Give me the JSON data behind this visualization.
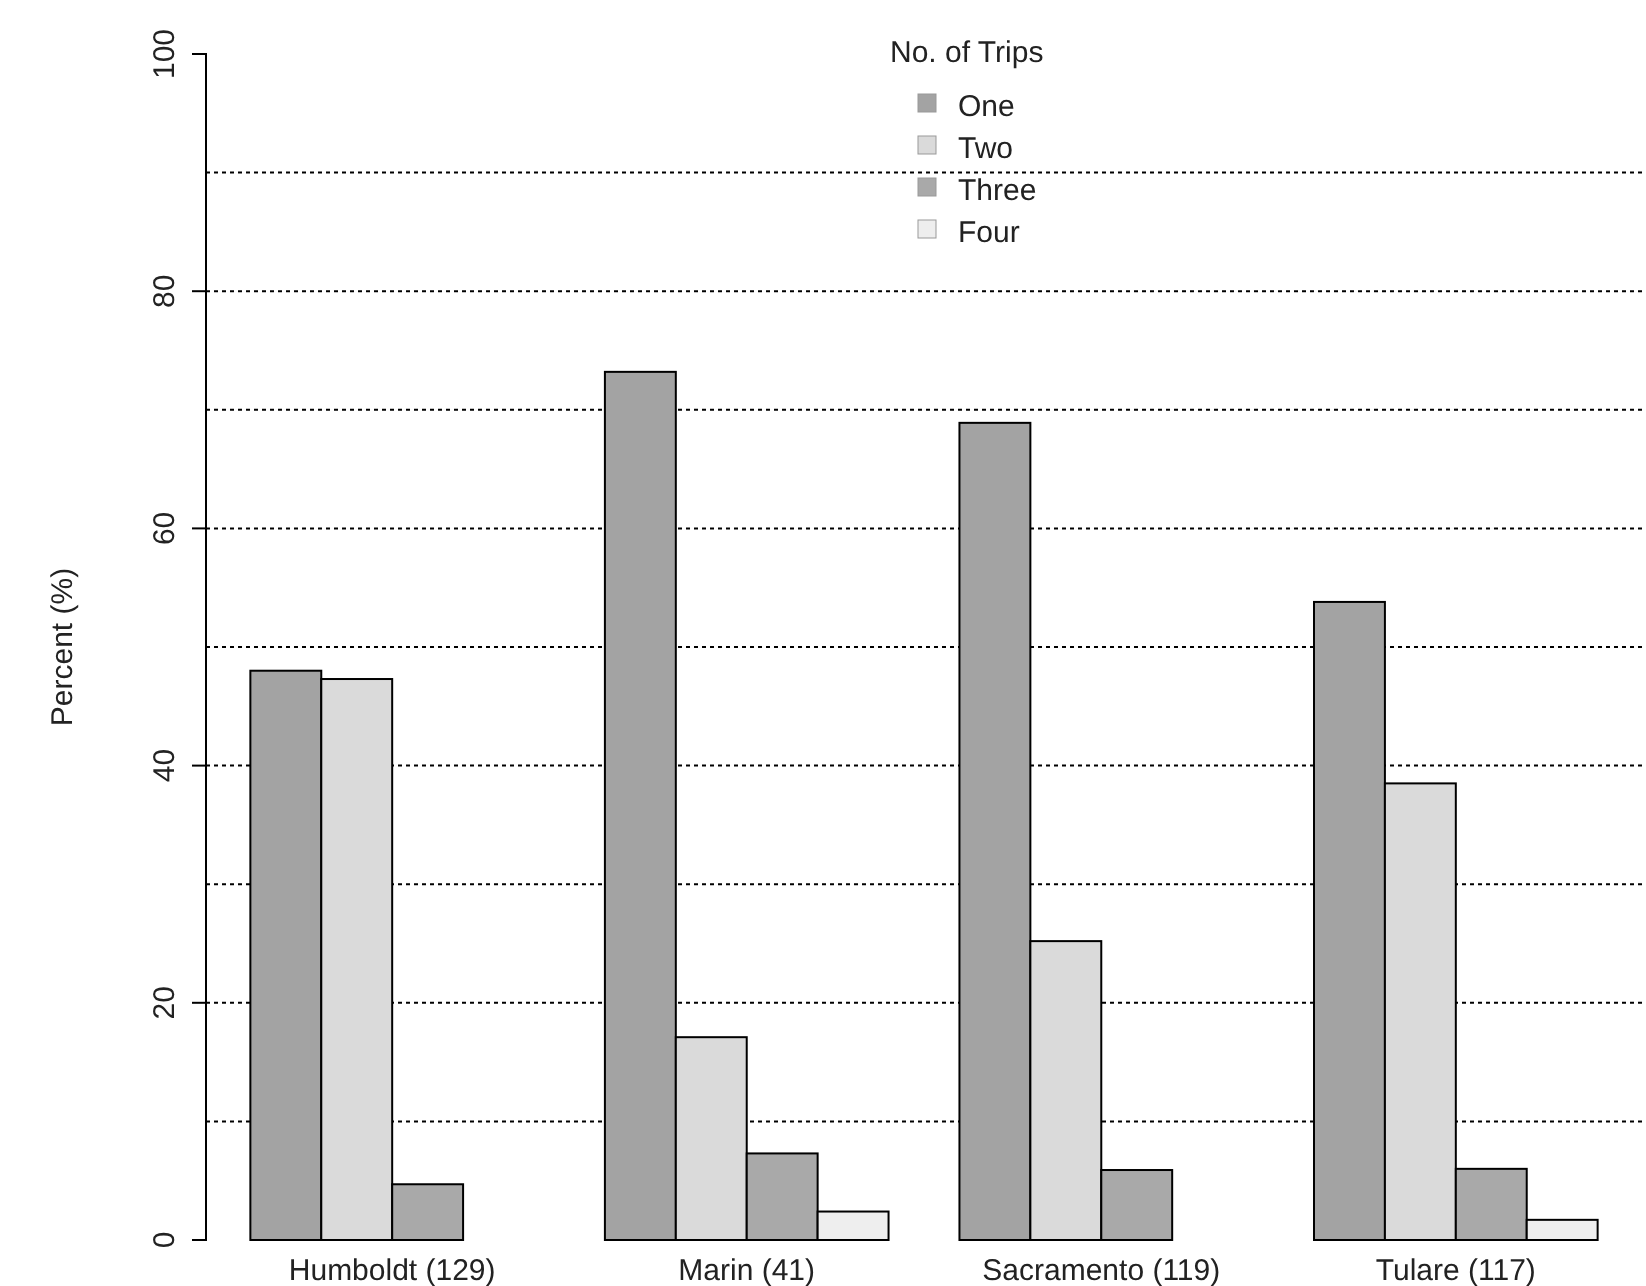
{
  "chart_data": {
    "type": "bar",
    "ylabel": "Percent (%)",
    "legend_title": "No. of Trips",
    "categories": [
      "Humboldt (129)",
      "Marin (41)",
      "Sacramento (119)",
      "Tulare (117)"
    ],
    "series": [
      {
        "name": "One",
        "color": "#a3a3a3",
        "values": [
          48,
          73.2,
          68.9,
          53.8
        ]
      },
      {
        "name": "Two",
        "color": "#dadada",
        "values": [
          47.3,
          17.1,
          25.2,
          38.5
        ]
      },
      {
        "name": "Three",
        "color": "#a9a9a9",
        "values": [
          4.7,
          7.3,
          5.9,
          6
        ]
      },
      {
        "name": "Four",
        "color": "#eeeeee",
        "values": [
          0,
          2.4,
          0,
          1.7
        ]
      }
    ],
    "ylim": [
      0,
      100
    ],
    "yticks": [
      0,
      {
        "value": 10,
        "label": null
      },
      20,
      {
        "value": 30,
        "label": null
      },
      40,
      {
        "value": 50,
        "label": null
      },
      60,
      {
        "value": 70,
        "label": null
      },
      80,
      {
        "value": 90,
        "label": null
      },
      100
    ],
    "grid": "y",
    "legend": "top"
  }
}
